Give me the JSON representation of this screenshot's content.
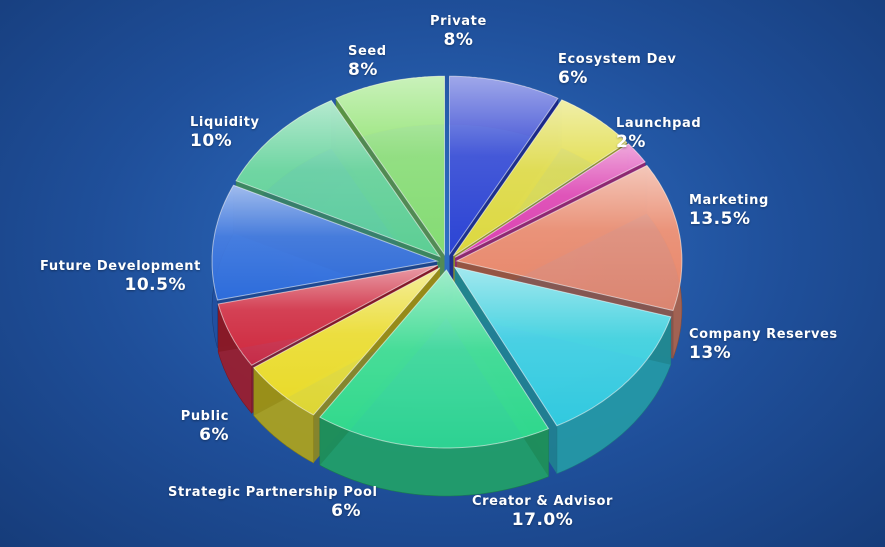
{
  "chart_data": {
    "type": "pie",
    "style": "3d exploded glass pie",
    "legend": "labels around slices",
    "slices": [
      {
        "key": "private",
        "label": "Private",
        "percent_label": "8%",
        "value": 8,
        "color": "#2b3fd6"
      },
      {
        "key": "ecosystem",
        "label": "Ecosystem Dev",
        "percent_label": "6%",
        "value": 6,
        "color": "#e7e240"
      },
      {
        "key": "launchpad",
        "label": "Launchpad",
        "percent_label": "2%",
        "value": 2,
        "color": "#e33fb8"
      },
      {
        "key": "marketing",
        "label": "Marketing",
        "percent_label": "13.5%",
        "value": 13.5,
        "color": "#f08a6a"
      },
      {
        "key": "reserves",
        "label": "Company Reserves",
        "percent_label": "13%",
        "value": 13,
        "color": "#33d6e6"
      },
      {
        "key": "creator",
        "label": "Creator & Advisor",
        "percent_label": "17.0%",
        "value": 17.0,
        "color": "#2fe090"
      },
      {
        "key": "strategic",
        "label": "Strategic Partnership Pool",
        "percent_label": "6%",
        "value": 6,
        "color": "#f3e428"
      },
      {
        "key": "public",
        "label": "Public",
        "percent_label": "6%",
        "value": 6,
        "color": "#d8283e"
      },
      {
        "key": "future",
        "label": "Future Development",
        "percent_label": "10.5%",
        "value": 10.5,
        "color": "#2f6ee0"
      },
      {
        "key": "liquidity",
        "label": "Liquidity",
        "percent_label": "10%",
        "value": 10,
        "color": "#5fd69a"
      },
      {
        "key": "seed",
        "label": "Seed",
        "percent_label": "8%",
        "value": 8,
        "color": "#8ee86a"
      }
    ]
  }
}
